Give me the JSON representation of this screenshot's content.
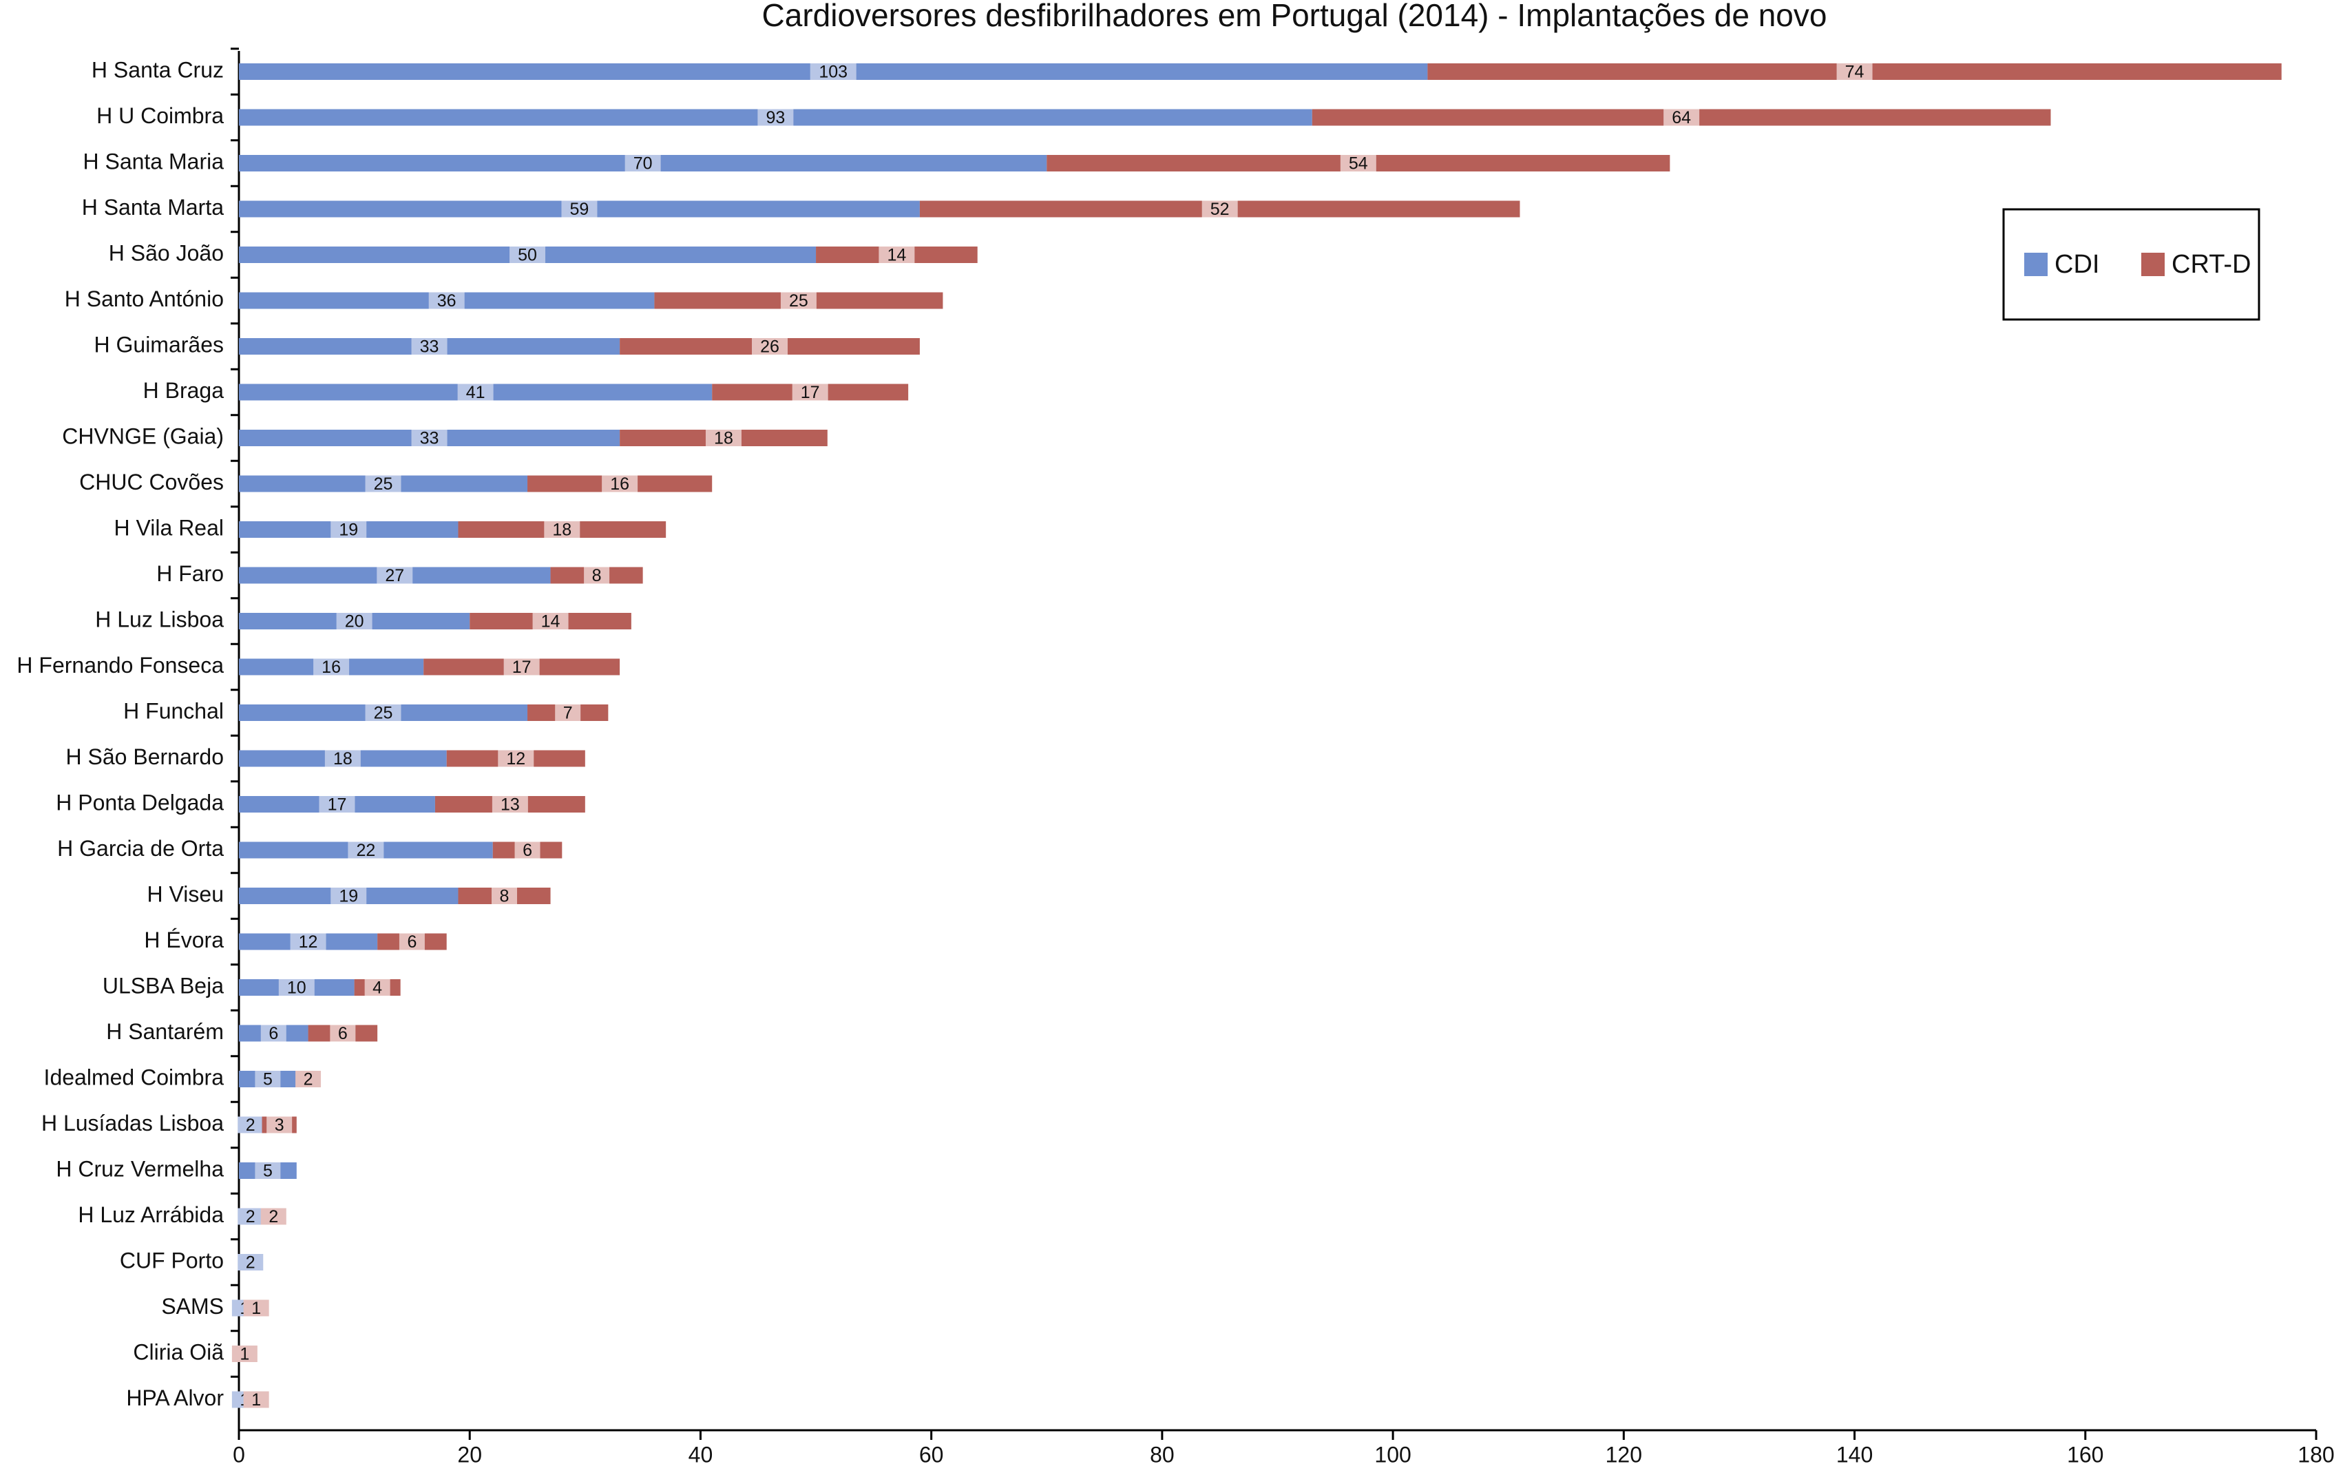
{
  "chart_data": {
    "type": "bar",
    "orientation": "horizontal",
    "stacked": true,
    "title": "Cardioversores desfibrilhadores em Portugal (2014) - Implantações de novo",
    "categories": [
      "H Santa Cruz",
      "H U Coimbra",
      "H Santa Maria",
      "H Santa Marta",
      "H São João",
      "H Santo António",
      "H Guimarães",
      "H Braga",
      "CHVNGE (Gaia)",
      "CHUC Covões",
      "H Vila Real",
      "H Faro",
      "H Luz Lisboa",
      "H Fernando Fonseca",
      "H Funchal",
      "H São Bernardo",
      "H Ponta Delgada",
      "H Garcia de Orta",
      "H Viseu",
      "H Évora",
      "ULSBA Beja",
      "H Santarém",
      "Idealmed Coimbra",
      "H Lusíadas Lisboa",
      "H Cruz Vermelha",
      "H Luz Arrábida",
      "CUF Porto",
      "SAMS",
      "Cliria Oiã",
      "HPA Alvor"
    ],
    "series": [
      {
        "name": "CDI",
        "color": "#6f8fcf",
        "values": [
          103,
          93,
          70,
          59,
          50,
          36,
          33,
          41,
          33,
          25,
          19,
          27,
          20,
          16,
          25,
          18,
          17,
          22,
          19,
          12,
          10,
          6,
          5,
          2,
          5,
          2,
          2,
          1,
          null,
          1
        ]
      },
      {
        "name": "CRT-D",
        "color": "#b65f58",
        "values": [
          74,
          64,
          54,
          52,
          14,
          25,
          26,
          17,
          18,
          16,
          18,
          8,
          14,
          17,
          7,
          12,
          13,
          6,
          8,
          6,
          4,
          6,
          2,
          3,
          null,
          2,
          null,
          1,
          1,
          1
        ]
      }
    ],
    "xlim": [
      0,
      180
    ],
    "xticks": [
      0,
      20,
      40,
      60,
      80,
      100,
      120,
      140,
      160,
      180
    ],
    "legend": "upper right"
  }
}
